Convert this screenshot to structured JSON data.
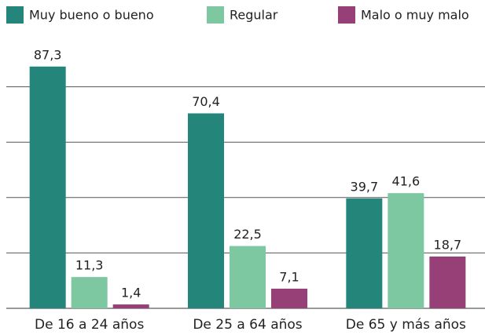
{
  "chart_data": {
    "type": "bar",
    "categories": [
      "De 16 a 24 años",
      "De 25 a 64 años",
      "De 65 y más años"
    ],
    "series": [
      {
        "name": "Muy bueno o bueno",
        "color": "#24867b",
        "values": [
          87.3,
          70.4,
          39.7
        ],
        "value_labels": [
          "87,3",
          "70,4",
          "39,7"
        ]
      },
      {
        "name": "Regular",
        "color": "#7dc8a1",
        "values": [
          11.3,
          22.5,
          41.6
        ],
        "value_labels": [
          "11,3",
          "22,5",
          "41,6"
        ]
      },
      {
        "name": "Malo o muy malo",
        "color": "#973f77",
        "values": [
          1.4,
          7.1,
          18.7
        ],
        "value_labels": [
          "1,4",
          "7,1",
          "18,7"
        ]
      }
    ],
    "ylim": [
      0,
      100
    ],
    "yticks": [
      0,
      20,
      40,
      60,
      80
    ],
    "grid": true,
    "legend": "top"
  }
}
